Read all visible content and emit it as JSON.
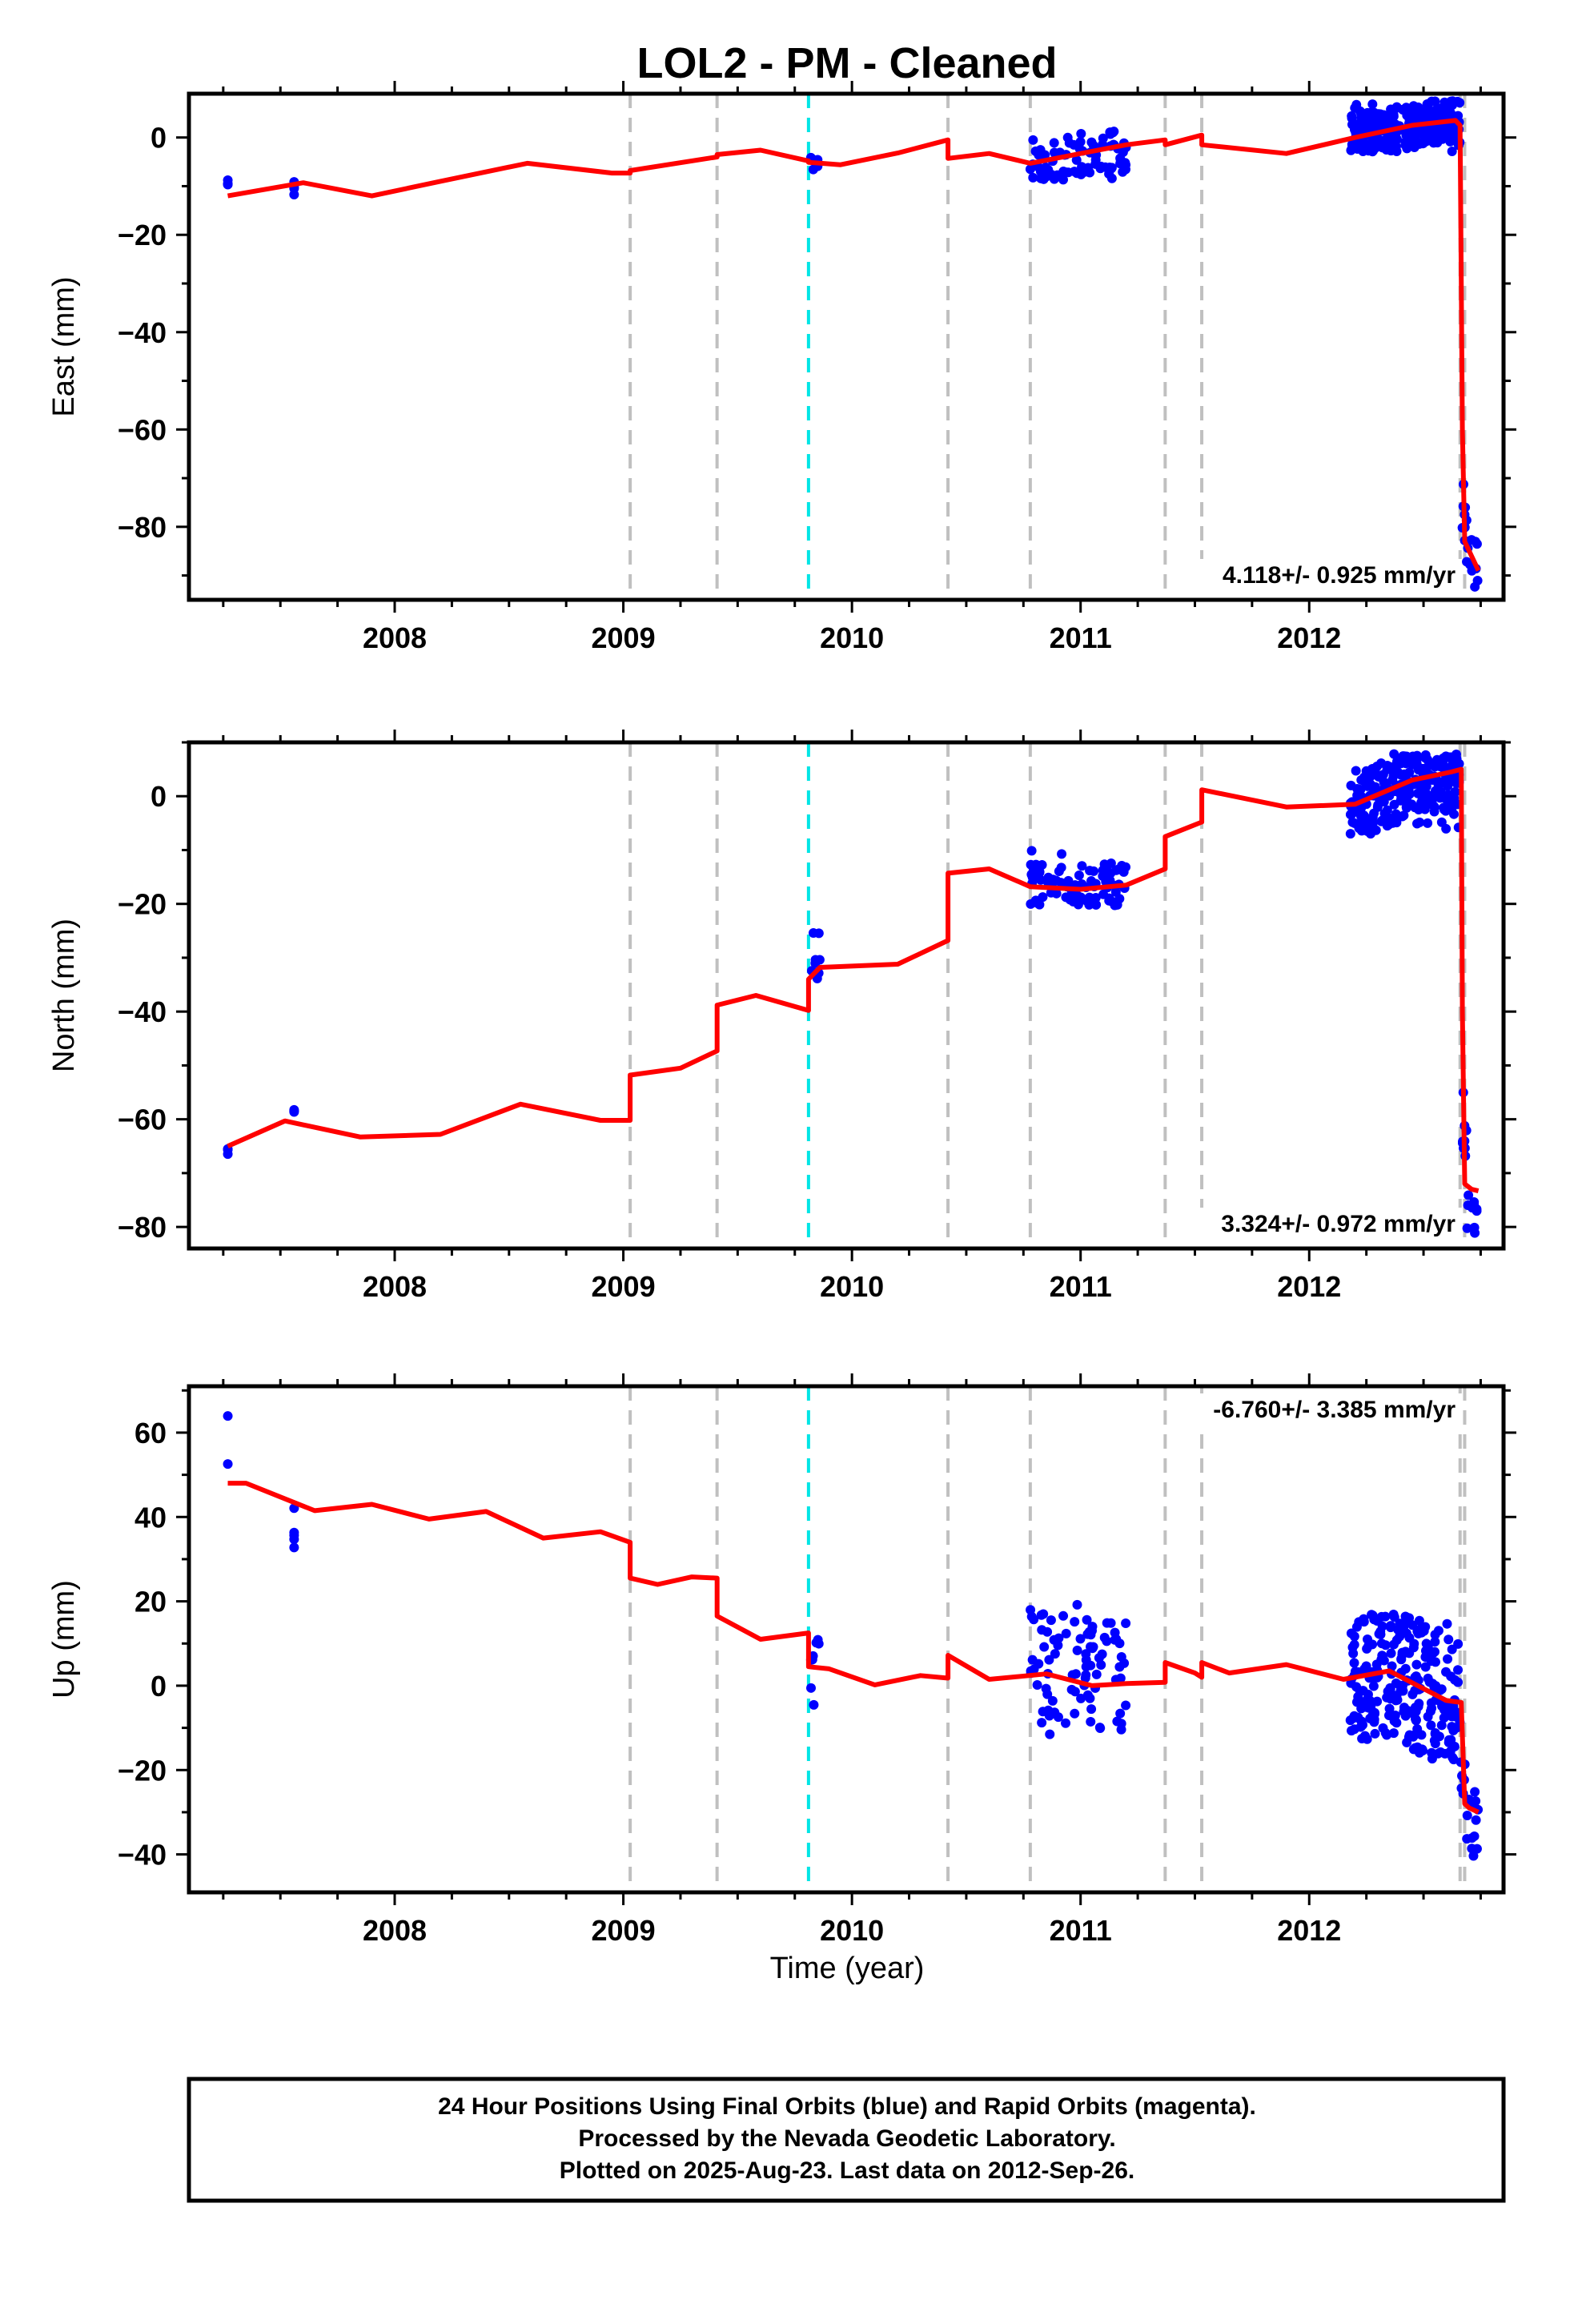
{
  "title": "LOL2  - PM - Cleaned",
  "xlabel": "Time (year)",
  "footer": {
    "line1": "24 Hour Positions Using Final Orbits (blue) and Rapid Orbits (magenta).",
    "line2": "Processed by the Nevada Geodetic Laboratory.",
    "line3": "Plotted on 2025-Aug-23. Last data on 2012-Sep-26."
  },
  "colors": {
    "final_orbit_points": "#0000ff",
    "model_fit": "#ff0000",
    "equipment_change_line": "#c0c0c0",
    "earthquake_line": "#00e5e5"
  },
  "chart_data": [
    {
      "type": "scatter",
      "component": "east",
      "ylabel": "East (mm)",
      "rate_text": "4.118+/- 0.925 mm/yr",
      "xlim": [
        2007.1,
        2012.85
      ],
      "ylim": [
        -95,
        9
      ],
      "xticks": [
        2008,
        2009,
        2010,
        2011,
        2012
      ],
      "yticks": [
        0,
        -20,
        -40,
        -60,
        -80
      ],
      "vertical_lines_gray": [
        2009.03,
        2009.41,
        2010.42,
        2010.78,
        2011.37,
        2011.53,
        2012.66,
        2012.68
      ],
      "vertical_lines_cyan": [
        2009.81
      ],
      "series": [
        {
          "kind": "points",
          "segments": [
            {
              "from": 2007.27,
              "to": 2007.27,
              "min": -10,
              "max": -8.5,
              "n": 4
            },
            {
              "from": 2007.56,
              "to": 2007.56,
              "min": -12,
              "max": -8,
              "n": 6
            },
            {
              "from": 2009.82,
              "to": 2009.86,
              "min": -7,
              "max": -3,
              "n": 8
            },
            {
              "from": 2010.78,
              "to": 2011.2,
              "min": -9,
              "max": 1.5,
              "n": 90
            },
            {
              "from": 2012.18,
              "to": 2012.66,
              "min": -3,
              "max": 7.5,
              "n": 260
            },
            {
              "from": 2012.67,
              "to": 2012.69,
              "min": -88,
              "max": -70,
              "n": 10
            },
            {
              "from": 2012.69,
              "to": 2012.74,
              "min": -93,
              "max": -82,
              "n": 10
            }
          ]
        },
        {
          "kind": "model",
          "knots": [
            [
              2007.27,
              -12
            ],
            [
              2007.6,
              -9.3
            ],
            [
              2007.9,
              -12
            ],
            [
              2008.2,
              -9
            ],
            [
              2008.58,
              -5.3
            ],
            [
              2008.95,
              -7.3
            ],
            [
              2009.03,
              -7.3
            ],
            [
              2009.03,
              -6.8
            ],
            [
              2009.41,
              -4.0
            ],
            [
              2009.41,
              -3.5
            ],
            [
              2009.6,
              -2.6
            ],
            [
              2009.81,
              -4.8
            ],
            [
              2009.81,
              -5.1
            ],
            [
              2009.95,
              -5.6
            ],
            [
              2010.2,
              -3.2
            ],
            [
              2010.42,
              -0.5
            ],
            [
              2010.42,
              -4.3
            ],
            [
              2010.6,
              -3.3
            ],
            [
              2010.78,
              -5.3
            ],
            [
              2011.0,
              -3.3
            ],
            [
              2011.2,
              -1.5
            ],
            [
              2011.37,
              -0.5
            ],
            [
              2011.37,
              -1.5
            ],
            [
              2011.53,
              0.5
            ],
            [
              2011.53,
              -1.5
            ],
            [
              2011.9,
              -3.3
            ],
            [
              2012.2,
              0
            ],
            [
              2012.45,
              2.5
            ],
            [
              2012.64,
              3.5
            ],
            [
              2012.66,
              2.5
            ],
            [
              2012.67,
              -60
            ],
            [
              2012.68,
              -83
            ],
            [
              2012.72,
              -87
            ],
            [
              2012.74,
              -89
            ]
          ]
        }
      ]
    },
    {
      "type": "scatter",
      "component": "north",
      "ylabel": "North (mm)",
      "rate_text": "3.324+/- 0.972 mm/yr",
      "xlim": [
        2007.1,
        2012.85
      ],
      "ylim": [
        -84,
        10
      ],
      "xticks": [
        2008,
        2009,
        2010,
        2011,
        2012
      ],
      "yticks": [
        0,
        -20,
        -40,
        -60,
        -80
      ],
      "vertical_lines_gray": [
        2009.03,
        2009.41,
        2010.42,
        2010.78,
        2011.37,
        2011.53,
        2012.66,
        2012.68
      ],
      "vertical_lines_cyan": [
        2009.81
      ],
      "series": [
        {
          "kind": "points",
          "segments": [
            {
              "from": 2007.27,
              "to": 2007.27,
              "min": -66.5,
              "max": -65.5,
              "n": 3
            },
            {
              "from": 2007.56,
              "to": 2007.56,
              "min": -59,
              "max": -58,
              "n": 3
            },
            {
              "from": 2009.82,
              "to": 2009.86,
              "min": -34,
              "max": -25,
              "n": 8
            },
            {
              "from": 2010.78,
              "to": 2011.2,
              "min": -20.5,
              "max": -10,
              "n": 90
            },
            {
              "from": 2012.18,
              "to": 2012.66,
              "min": -7,
              "max": 8,
              "n": 260
            },
            {
              "from": 2012.67,
              "to": 2012.69,
              "min": -70,
              "max": -55,
              "n": 10
            },
            {
              "from": 2012.69,
              "to": 2012.74,
              "min": -82.5,
              "max": -74,
              "n": 10
            }
          ]
        },
        {
          "kind": "model",
          "knots": [
            [
              2007.27,
              -65
            ],
            [
              2007.52,
              -60.3
            ],
            [
              2007.85,
              -63.3
            ],
            [
              2008.2,
              -62.8
            ],
            [
              2008.55,
              -57.2
            ],
            [
              2008.9,
              -60.2
            ],
            [
              2009.03,
              -60.2
            ],
            [
              2009.03,
              -51.8
            ],
            [
              2009.25,
              -50.5
            ],
            [
              2009.41,
              -47.3
            ],
            [
              2009.41,
              -38.8
            ],
            [
              2009.58,
              -37.0
            ],
            [
              2009.81,
              -39.8
            ],
            [
              2009.81,
              -34.0
            ],
            [
              2009.86,
              -31.8
            ],
            [
              2010.2,
              -31.2
            ],
            [
              2010.42,
              -26.8
            ],
            [
              2010.42,
              -14.3
            ],
            [
              2010.6,
              -13.5
            ],
            [
              2010.78,
              -16.8
            ],
            [
              2011.0,
              -17.3
            ],
            [
              2011.2,
              -16.5
            ],
            [
              2011.37,
              -13.5
            ],
            [
              2011.37,
              -7.5
            ],
            [
              2011.53,
              -4.8
            ],
            [
              2011.53,
              1.2
            ],
            [
              2011.9,
              -2.0
            ],
            [
              2012.2,
              -1.5
            ],
            [
              2012.45,
              3
            ],
            [
              2012.62,
              4.5
            ],
            [
              2012.665,
              5
            ],
            [
              2012.67,
              -40
            ],
            [
              2012.68,
              -72
            ],
            [
              2012.71,
              -73
            ],
            [
              2012.74,
              -73.3
            ]
          ]
        }
      ]
    },
    {
      "type": "scatter",
      "component": "up",
      "ylabel": "Up (mm)",
      "rate_text": "-6.760+/- 3.385 mm/yr",
      "xlim": [
        2007.1,
        2012.85
      ],
      "ylim": [
        -49,
        71
      ],
      "xticks": [
        2008,
        2009,
        2010,
        2011,
        2012
      ],
      "yticks": [
        60,
        40,
        20,
        0,
        -20,
        -40
      ],
      "vertical_lines_gray": [
        2009.03,
        2009.41,
        2010.42,
        2010.78,
        2011.37,
        2011.53,
        2012.66,
        2012.68
      ],
      "vertical_lines_cyan": [
        2009.81
      ],
      "series": [
        {
          "kind": "points",
          "segments": [
            {
              "from": 2007.27,
              "to": 2007.27,
              "min": 50,
              "max": 68,
              "n": 2
            },
            {
              "from": 2007.56,
              "to": 2007.56,
              "min": 30,
              "max": 47,
              "n": 5
            },
            {
              "from": 2009.82,
              "to": 2009.86,
              "min": -9,
              "max": 12,
              "n": 8
            },
            {
              "from": 2010.78,
              "to": 2011.2,
              "min": -12,
              "max": 23,
              "n": 90
            },
            {
              "from": 2012.18,
              "to": 2012.66,
              "min": -18,
              "max": 17,
              "n": 260
            },
            {
              "from": 2012.66,
              "to": 2012.74,
              "min": -44,
              "max": -18,
              "n": 20
            }
          ]
        },
        {
          "kind": "model",
          "knots": [
            [
              2007.27,
              48
            ],
            [
              2007.35,
              48
            ],
            [
              2007.65,
              41.5
            ],
            [
              2007.9,
              43
            ],
            [
              2008.15,
              39.5
            ],
            [
              2008.4,
              41.3
            ],
            [
              2008.65,
              35
            ],
            [
              2008.9,
              36.5
            ],
            [
              2009.03,
              34
            ],
            [
              2009.03,
              25.5
            ],
            [
              2009.15,
              24
            ],
            [
              2009.3,
              25.8
            ],
            [
              2009.41,
              25.5
            ],
            [
              2009.41,
              16.5
            ],
            [
              2009.6,
              11
            ],
            [
              2009.81,
              12.5
            ],
            [
              2009.81,
              4.5
            ],
            [
              2009.9,
              4
            ],
            [
              2010.1,
              0.2
            ],
            [
              2010.3,
              2.4
            ],
            [
              2010.42,
              1.8
            ],
            [
              2010.42,
              7.2
            ],
            [
              2010.6,
              1.5
            ],
            [
              2010.85,
              2.8
            ],
            [
              2011.05,
              0
            ],
            [
              2011.2,
              0.5
            ],
            [
              2011.37,
              0.8
            ],
            [
              2011.37,
              5.5
            ],
            [
              2011.5,
              3
            ],
            [
              2011.53,
              2
            ],
            [
              2011.53,
              5.5
            ],
            [
              2011.65,
              3
            ],
            [
              2011.9,
              5
            ],
            [
              2012.15,
              1.5
            ],
            [
              2012.35,
              3.5
            ],
            [
              2012.6,
              -3.5
            ],
            [
              2012.665,
              -4
            ],
            [
              2012.68,
              -28
            ],
            [
              2012.7,
              -29
            ],
            [
              2012.74,
              -30
            ]
          ]
        }
      ]
    }
  ]
}
